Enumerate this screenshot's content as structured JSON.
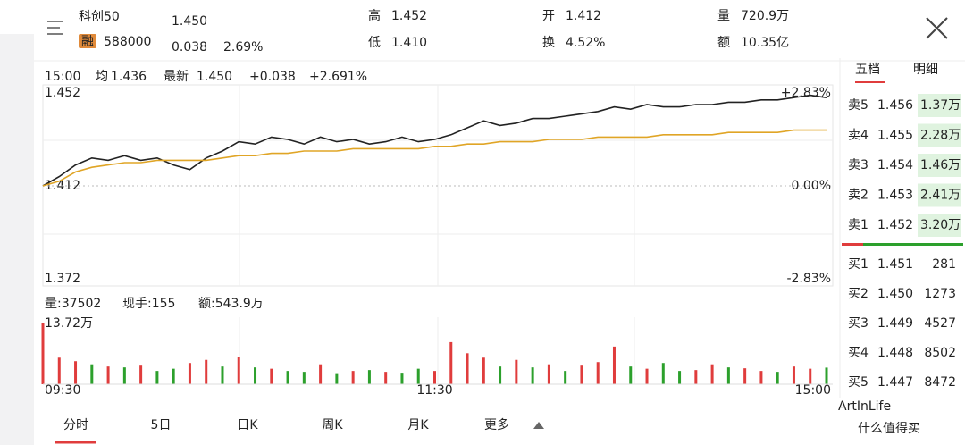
{
  "header": {
    "name": "科创50",
    "tag": "融",
    "code": "588000",
    "price": "1.450",
    "change": "0.038",
    "change_pct": "2.69%",
    "stats": [
      {
        "label": "高",
        "value": "1.452"
      },
      {
        "label": "低",
        "value": "1.410"
      },
      {
        "label": "开",
        "value": "1.412"
      },
      {
        "label": "换",
        "value": "4.52%"
      },
      {
        "label": "量",
        "value": "720.9万"
      },
      {
        "label": "额",
        "value": "10.35亿"
      }
    ]
  },
  "info": {
    "time": "15:00",
    "avg_label": "均",
    "avg": "1.436",
    "latest_label": "最新",
    "latest": "1.450",
    "change": "+0.038",
    "change_pct": "+2.691%"
  },
  "volume_info": {
    "volume": "量:37502",
    "hand": "现手:155",
    "amount": "额:543.9万"
  },
  "chart_data": [
    {
      "type": "line",
      "categories": [
        "09:30",
        null,
        null,
        null,
        null,
        null,
        null,
        null,
        null,
        null,
        null,
        null,
        null,
        null,
        null,
        null,
        null,
        null,
        null,
        null,
        null,
        null,
        null,
        null,
        "11:30",
        null,
        null,
        null,
        null,
        null,
        null,
        null,
        null,
        null,
        null,
        null,
        null,
        null,
        null,
        null,
        null,
        null,
        null,
        null,
        null,
        null,
        null,
        null,
        "15:00"
      ],
      "ylim": [
        1.372,
        1.452
      ],
      "yticks": [
        1.452,
        1.412,
        1.372
      ],
      "y2lim": [
        -2.83,
        2.83
      ],
      "y2ticks": [
        {
          "value": 2.83,
          "label": "+2.83%"
        },
        {
          "value": 0,
          "label": "0.00%"
        },
        {
          "value": -2.83,
          "label": "-2.83%"
        }
      ],
      "series": [
        {
          "name": "最新",
          "color": "#222222",
          "values": [
            1.412,
            1.416,
            1.421,
            1.424,
            1.423,
            1.425,
            1.423,
            1.424,
            1.421,
            1.419,
            1.424,
            1.427,
            1.431,
            1.43,
            1.433,
            1.432,
            1.43,
            1.433,
            1.431,
            1.432,
            1.43,
            1.431,
            1.433,
            1.431,
            1.432,
            1.434,
            1.437,
            1.44,
            1.438,
            1.439,
            1.441,
            1.441,
            1.442,
            1.443,
            1.444,
            1.446,
            1.445,
            1.447,
            1.446,
            1.446,
            1.447,
            1.447,
            1.448,
            1.448,
            1.449,
            1.449,
            1.45,
            1.451,
            1.45
          ]
        },
        {
          "name": "均",
          "color": "#e0a526",
          "values": [
            1.412,
            1.414,
            1.418,
            1.42,
            1.421,
            1.422,
            1.422,
            1.423,
            1.423,
            1.423,
            1.423,
            1.424,
            1.425,
            1.425,
            1.426,
            1.426,
            1.427,
            1.427,
            1.427,
            1.428,
            1.428,
            1.428,
            1.428,
            1.428,
            1.429,
            1.429,
            1.43,
            1.43,
            1.431,
            1.431,
            1.431,
            1.432,
            1.432,
            1.432,
            1.433,
            1.433,
            1.433,
            1.433,
            1.434,
            1.434,
            1.434,
            1.434,
            1.435,
            1.435,
            1.435,
            1.435,
            1.436,
            1.436,
            1.436
          ]
        }
      ]
    },
    {
      "type": "bar",
      "ylim": [
        0,
        137200
      ],
      "yticks": [
        {
          "value": 137200,
          "label": "13.72万"
        }
      ],
      "values": [
        137200,
        60000,
        52000,
        45000,
        40000,
        38000,
        42000,
        30000,
        35000,
        48000,
        55000,
        40000,
        62000,
        38000,
        35000,
        30000,
        28000,
        45000,
        25000,
        30000,
        32000,
        28000,
        26000,
        35000,
        30000,
        95000,
        70000,
        60000,
        40000,
        55000,
        38000,
        45000,
        30000,
        42000,
        50000,
        85000,
        40000,
        35000,
        48000,
        30000,
        32000,
        45000,
        38000,
        36000,
        30000,
        28000,
        40000,
        35000,
        37502
      ],
      "colors": [
        "#e03c3c",
        "#e03c3c",
        "#e03c3c",
        "#2ca02c",
        "#e03c3c",
        "#2ca02c",
        "#e03c3c",
        "#2ca02c",
        "#2ca02c",
        "#e03c3c",
        "#e03c3c",
        "#2ca02c",
        "#e03c3c",
        "#2ca02c",
        "#e03c3c",
        "#2ca02c",
        "#2ca02c",
        "#e03c3c",
        "#2ca02c",
        "#e03c3c",
        "#2ca02c",
        "#e03c3c",
        "#2ca02c",
        "#2ca02c",
        "#e03c3c",
        "#e03c3c",
        "#e03c3c",
        "#e03c3c",
        "#2ca02c",
        "#e03c3c",
        "#2ca02c",
        "#e03c3c",
        "#2ca02c",
        "#e03c3c",
        "#e03c3c",
        "#e03c3c",
        "#2ca02c",
        "#e03c3c",
        "#2ca02c",
        "#2ca02c",
        "#e03c3c",
        "#e03c3c",
        "#2ca02c",
        "#e03c3c",
        "#e03c3c",
        "#2ca02c",
        "#e03c3c",
        "#e03c3c",
        "#2ca02c"
      ]
    }
  ],
  "book": {
    "tabs": [
      "五档",
      "明细"
    ],
    "sells": [
      {
        "label": "卖5",
        "price": "1.456",
        "volume": "1.37万"
      },
      {
        "label": "卖4",
        "price": "1.455",
        "volume": "2.28万"
      },
      {
        "label": "卖3",
        "price": "1.454",
        "volume": "1.46万"
      },
      {
        "label": "卖2",
        "price": "1.453",
        "volume": "2.41万"
      },
      {
        "label": "卖1",
        "price": "1.452",
        "volume": "3.20万"
      }
    ],
    "buys": [
      {
        "label": "买1",
        "price": "1.451",
        "volume": "281"
      },
      {
        "label": "买2",
        "price": "1.450",
        "volume": "1273"
      },
      {
        "label": "买3",
        "price": "1.449",
        "volume": "4527"
      },
      {
        "label": "买4",
        "price": "1.448",
        "volume": "8502"
      },
      {
        "label": "买5",
        "price": "1.447",
        "volume": "8472"
      }
    ]
  },
  "tabs": [
    "分时",
    "5日",
    "日K",
    "周K",
    "月K",
    "更多"
  ],
  "watermark": {
    "brand": "ArtInLife",
    "site": "什么值得买"
  }
}
